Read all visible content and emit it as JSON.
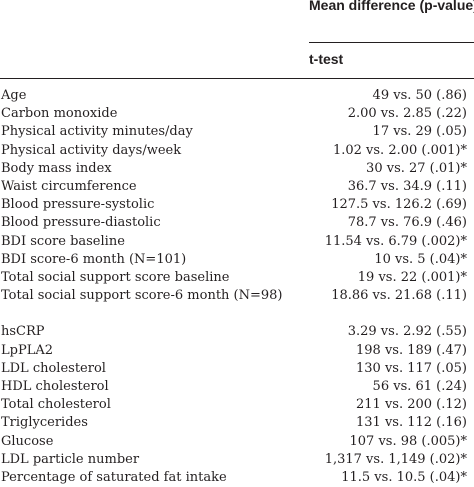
{
  "header": {
    "column_title": "Mean difference (p-value)",
    "column_sub": "t-test"
  },
  "rows": [
    {
      "label": "Age",
      "value": "49 vs. 50 (.86)"
    },
    {
      "label": "Carbon monoxide",
      "value": "2.00 vs. 2.85 (.22)"
    },
    {
      "label": "Physical activity minutes/day",
      "value": "17 vs. 29 (.05)"
    },
    {
      "label": "Physical activity days/week",
      "value": "1.02 vs. 2.00 (.001)*"
    },
    {
      "label": "Body mass index",
      "value": "30 vs. 27 (.01)*"
    },
    {
      "label": "Waist circumference",
      "value": "36.7 vs. 34.9 (.11)"
    },
    {
      "label": "Blood pressure-systolic",
      "value": "127.5 vs. 126.2 (.69)"
    },
    {
      "label": "Blood pressure-diastolic",
      "value": "78.7 vs. 76.9 (.46)"
    },
    {
      "label": "BDI score baseline",
      "value": "11.54 vs. 6.79 (.002)*"
    },
    {
      "label": "BDI score-6 month (N=101)",
      "value": "10 vs. 5 (.04)*"
    },
    {
      "label": "Total social support score baseline",
      "value": "19 vs. 22 (.001)*"
    },
    {
      "label": "Total social support score-6 month (N=98)",
      "value": "18.86 vs. 21.68 (.11)"
    },
    {
      "label": "hsCRP",
      "value": "3.29 vs. 2.92 (.55)"
    },
    {
      "label": "LpPLA2",
      "value": "198 vs. 189 (.47)"
    },
    {
      "label": "LDL cholesterol",
      "value": "130 vs. 117 (.05)"
    },
    {
      "label": "HDL cholesterol",
      "value": "56 vs. 61 (.24)"
    },
    {
      "label": "Total cholesterol",
      "value": "211 vs. 200 (.12)"
    },
    {
      "label": "Triglycerides",
      "value": "131 vs. 112 (.16)"
    },
    {
      "label": "Glucose",
      "value": "107 vs. 98 (.005)*"
    },
    {
      "label": "LDL particle number",
      "value": "1,317 vs. 1,149 (.02)*"
    },
    {
      "label": "Percentage of saturated fat intake",
      "value": "11.5 vs. 10.5 (.04)*"
    }
  ]
}
